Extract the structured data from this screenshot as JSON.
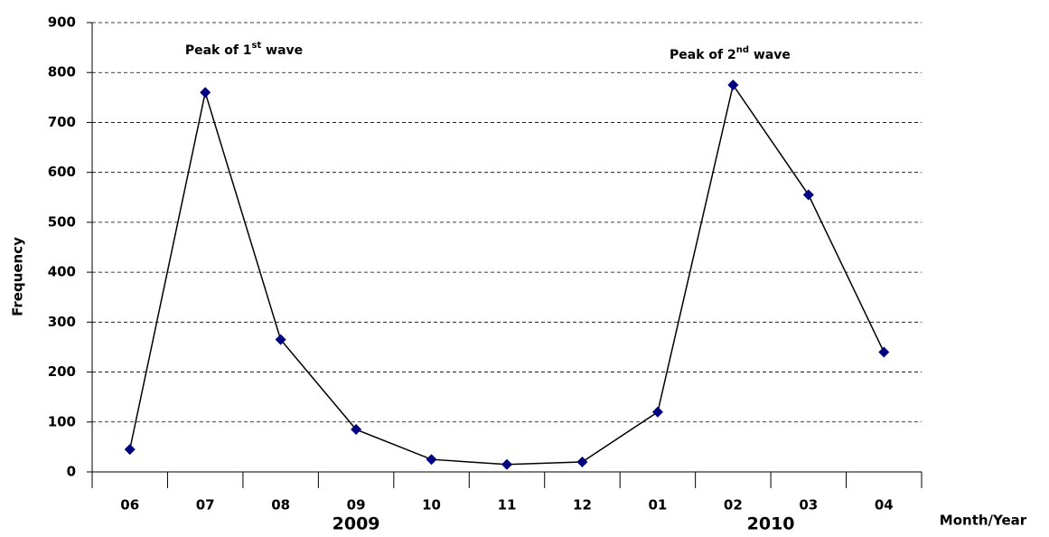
{
  "chart_data": {
    "type": "line",
    "y_label": "Frequency",
    "x_label": "Month/Year",
    "categories": [
      "06",
      "07",
      "08",
      "09",
      "10",
      "11",
      "12",
      "01",
      "02",
      "03",
      "04"
    ],
    "year_labels": [
      "2009",
      "2010"
    ],
    "series": [
      {
        "name": "Frequency",
        "color": "#000080",
        "values": [
          45,
          760,
          265,
          85,
          25,
          15,
          20,
          120,
          775,
          555,
          240
        ]
      }
    ],
    "annotations": [
      {
        "text": "Peak of 1",
        "sup": "st",
        "tail": " wave"
      },
      {
        "text": "Peak of 2",
        "sup": "nd",
        "tail": " wave"
      }
    ],
    "ylim": [
      0,
      900
    ],
    "yticks": [
      0,
      100,
      200,
      300,
      400,
      500,
      600,
      700,
      800,
      900
    ],
    "grid": true
  }
}
